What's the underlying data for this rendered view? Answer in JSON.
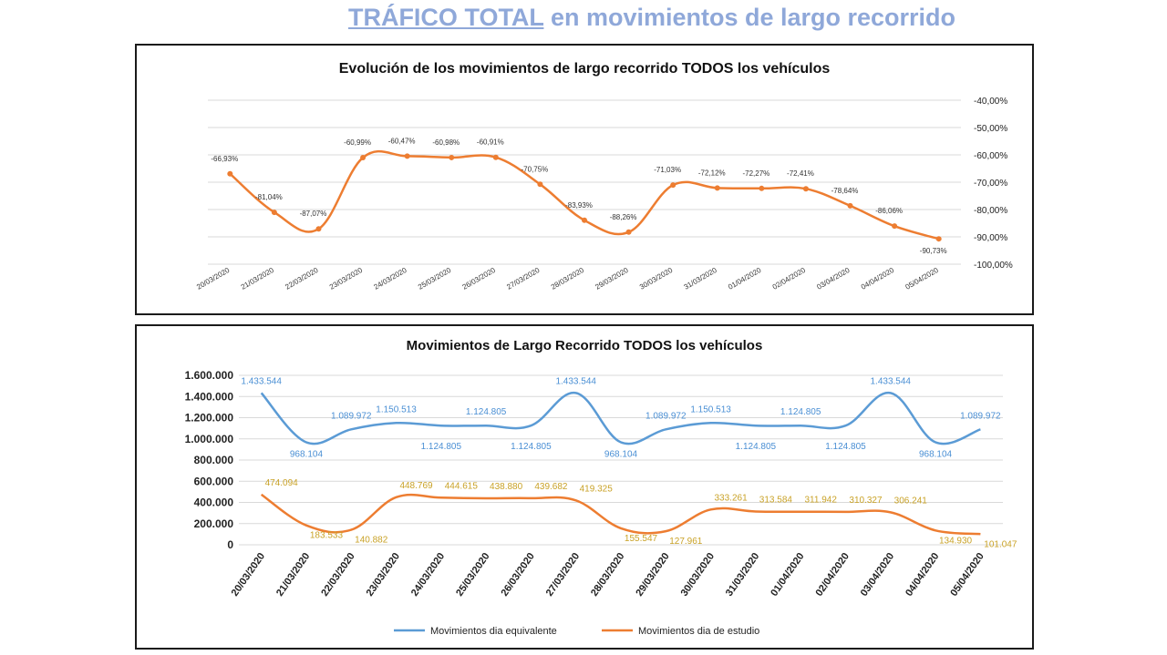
{
  "header": {
    "title_underlined": "TRÁFICO TOTAL",
    "title_rest": " en movimientos de largo recorrido"
  },
  "colors": {
    "title": "#8fa8d9",
    "line_equivalente": "#5b9bd5",
    "line_estudio": "#ed7d31",
    "label_equivalente": "#4a8fd4",
    "label_estudio": "#c9a227"
  },
  "chart_data": [
    {
      "type": "line",
      "title": "Evolución de los movimientos de largo recorrido TODOS los vehículos",
      "categories": [
        "20/03/2020",
        "21/03/2020",
        "22/03/2020",
        "23/03/2020",
        "24/03/2020",
        "25/03/2020",
        "26/03/2020",
        "27/03/2020",
        "28/03/2020",
        "29/03/2020",
        "30/03/2020",
        "31/03/2020",
        "01/04/2020",
        "02/04/2020",
        "03/04/2020",
        "04/04/2020",
        "05/04/2020"
      ],
      "values": [
        -66.93,
        -81.04,
        -87.07,
        -60.99,
        -60.47,
        -60.98,
        -60.91,
        -70.75,
        -83.93,
        -88.26,
        -71.03,
        -72.12,
        -72.27,
        -72.41,
        -78.64,
        -86.06,
        -90.73
      ],
      "data_labels": [
        "-66,93%",
        "-81,04%",
        "-87,07%",
        "-60,99%",
        "-60,47%",
        "-60,98%",
        "-60,91%",
        "-70,75%",
        "-83,93%",
        "-88,26%",
        "-71,03%",
        "-72,12%",
        "-72,27%",
        "-72,41%",
        "-78,64%",
        "-86,06%",
        "-90,73%"
      ],
      "y_ticks": [
        "-40,00%",
        "-50,00%",
        "-60,00%",
        "-70,00%",
        "-80,00%",
        "-90,00%",
        "-100,00%"
      ],
      "ylim": [
        -100,
        -40
      ],
      "y_axis_position": "right",
      "grid": true,
      "legend": "none"
    },
    {
      "type": "line",
      "title": "Movimientos de Largo Recorrido TODOS los vehículos",
      "categories": [
        "20/03/2020",
        "21/03/2020",
        "22/03/2020",
        "23/03/2020",
        "24/03/2020",
        "25/03/2020",
        "26/03/2020",
        "27/03/2020",
        "28/03/2020",
        "29/03/2020",
        "30/03/2020",
        "31/03/2020",
        "01/04/2020",
        "02/04/2020",
        "03/04/2020",
        "04/04/2020",
        "05/04/2020"
      ],
      "series": [
        {
          "name": "Movimientos dia equivalente",
          "values": [
            1433544,
            968104,
            1089972,
            1150513,
            1124805,
            1124805,
            1124805,
            1433544,
            968104,
            1089972,
            1150513,
            1124805,
            1124805,
            1124805,
            1433544,
            968104,
            1089972
          ],
          "data_labels": [
            "1.433.544",
            "968.104",
            "1.089.972",
            "1.150.513",
            "1.124.805",
            "1.124.805",
            "1.124.805",
            "1.433.544",
            "968.104",
            "1.089.972",
            "1.150.513",
            "1.124.805",
            "1.124.805",
            "1.124.805",
            "1.433.544",
            "968.104",
            "1.089.972"
          ]
        },
        {
          "name": "Movimientos dia de estudio",
          "values": [
            474094,
            183533,
            140882,
            448769,
            444615,
            438880,
            439682,
            419325,
            155547,
            127961,
            333261,
            313584,
            311942,
            310327,
            306241,
            134930,
            101047
          ],
          "data_labels": [
            "474.094",
            "183.533",
            "140.882",
            "448.769",
            "444.615",
            "438.880",
            "439.682",
            "419.325",
            "155.547",
            "127.961",
            "333.261",
            "313.584",
            "311.942",
            "310.327",
            "306.241",
            "134.930",
            "101.047"
          ]
        }
      ],
      "y_ticks": [
        "1.600.000",
        "1.400.000",
        "1.200.000",
        "1.000.000",
        "800.000",
        "600.000",
        "400.000",
        "200.000",
        "0"
      ],
      "ylim": [
        0,
        1600000
      ],
      "grid": true,
      "legend": "bottom"
    }
  ]
}
